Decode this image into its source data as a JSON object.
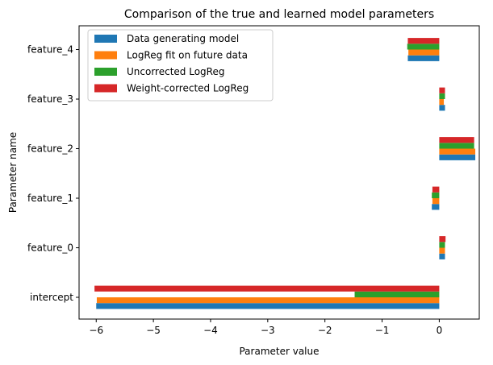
{
  "chart_data": {
    "type": "bar",
    "orientation": "horizontal",
    "title": "Comparison of the true and learned model parameters",
    "xlabel": "Parameter value",
    "ylabel": "Parameter name",
    "categories": [
      "intercept",
      "feature_0",
      "feature_1",
      "feature_2",
      "feature_3",
      "feature_4"
    ],
    "xlim": [
      -6.3,
      0.7
    ],
    "xticks": [
      -6,
      -5,
      -4,
      -3,
      -2,
      -1,
      0
    ],
    "xtick_labels": [
      "−6",
      "−5",
      "−4",
      "−3",
      "−2",
      "−1",
      "0"
    ],
    "grid": false,
    "legend_position": "top-left",
    "series": [
      {
        "name": "Data generating model",
        "color": "#1f77b4",
        "values": [
          -6.0,
          0.1,
          -0.13,
          0.63,
          0.1,
          -0.55
        ]
      },
      {
        "name": "LogReg fit on future data",
        "color": "#ff7f0e",
        "values": [
          -5.99,
          0.1,
          -0.12,
          0.63,
          0.08,
          -0.54
        ]
      },
      {
        "name": "Uncorrected LogReg",
        "color": "#2ca02c",
        "values": [
          -1.48,
          0.1,
          -0.13,
          0.61,
          0.1,
          -0.56
        ]
      },
      {
        "name": "Weight-corrected LogReg",
        "color": "#d62728",
        "values": [
          -6.03,
          0.11,
          -0.12,
          0.61,
          0.1,
          -0.55
        ]
      }
    ]
  }
}
